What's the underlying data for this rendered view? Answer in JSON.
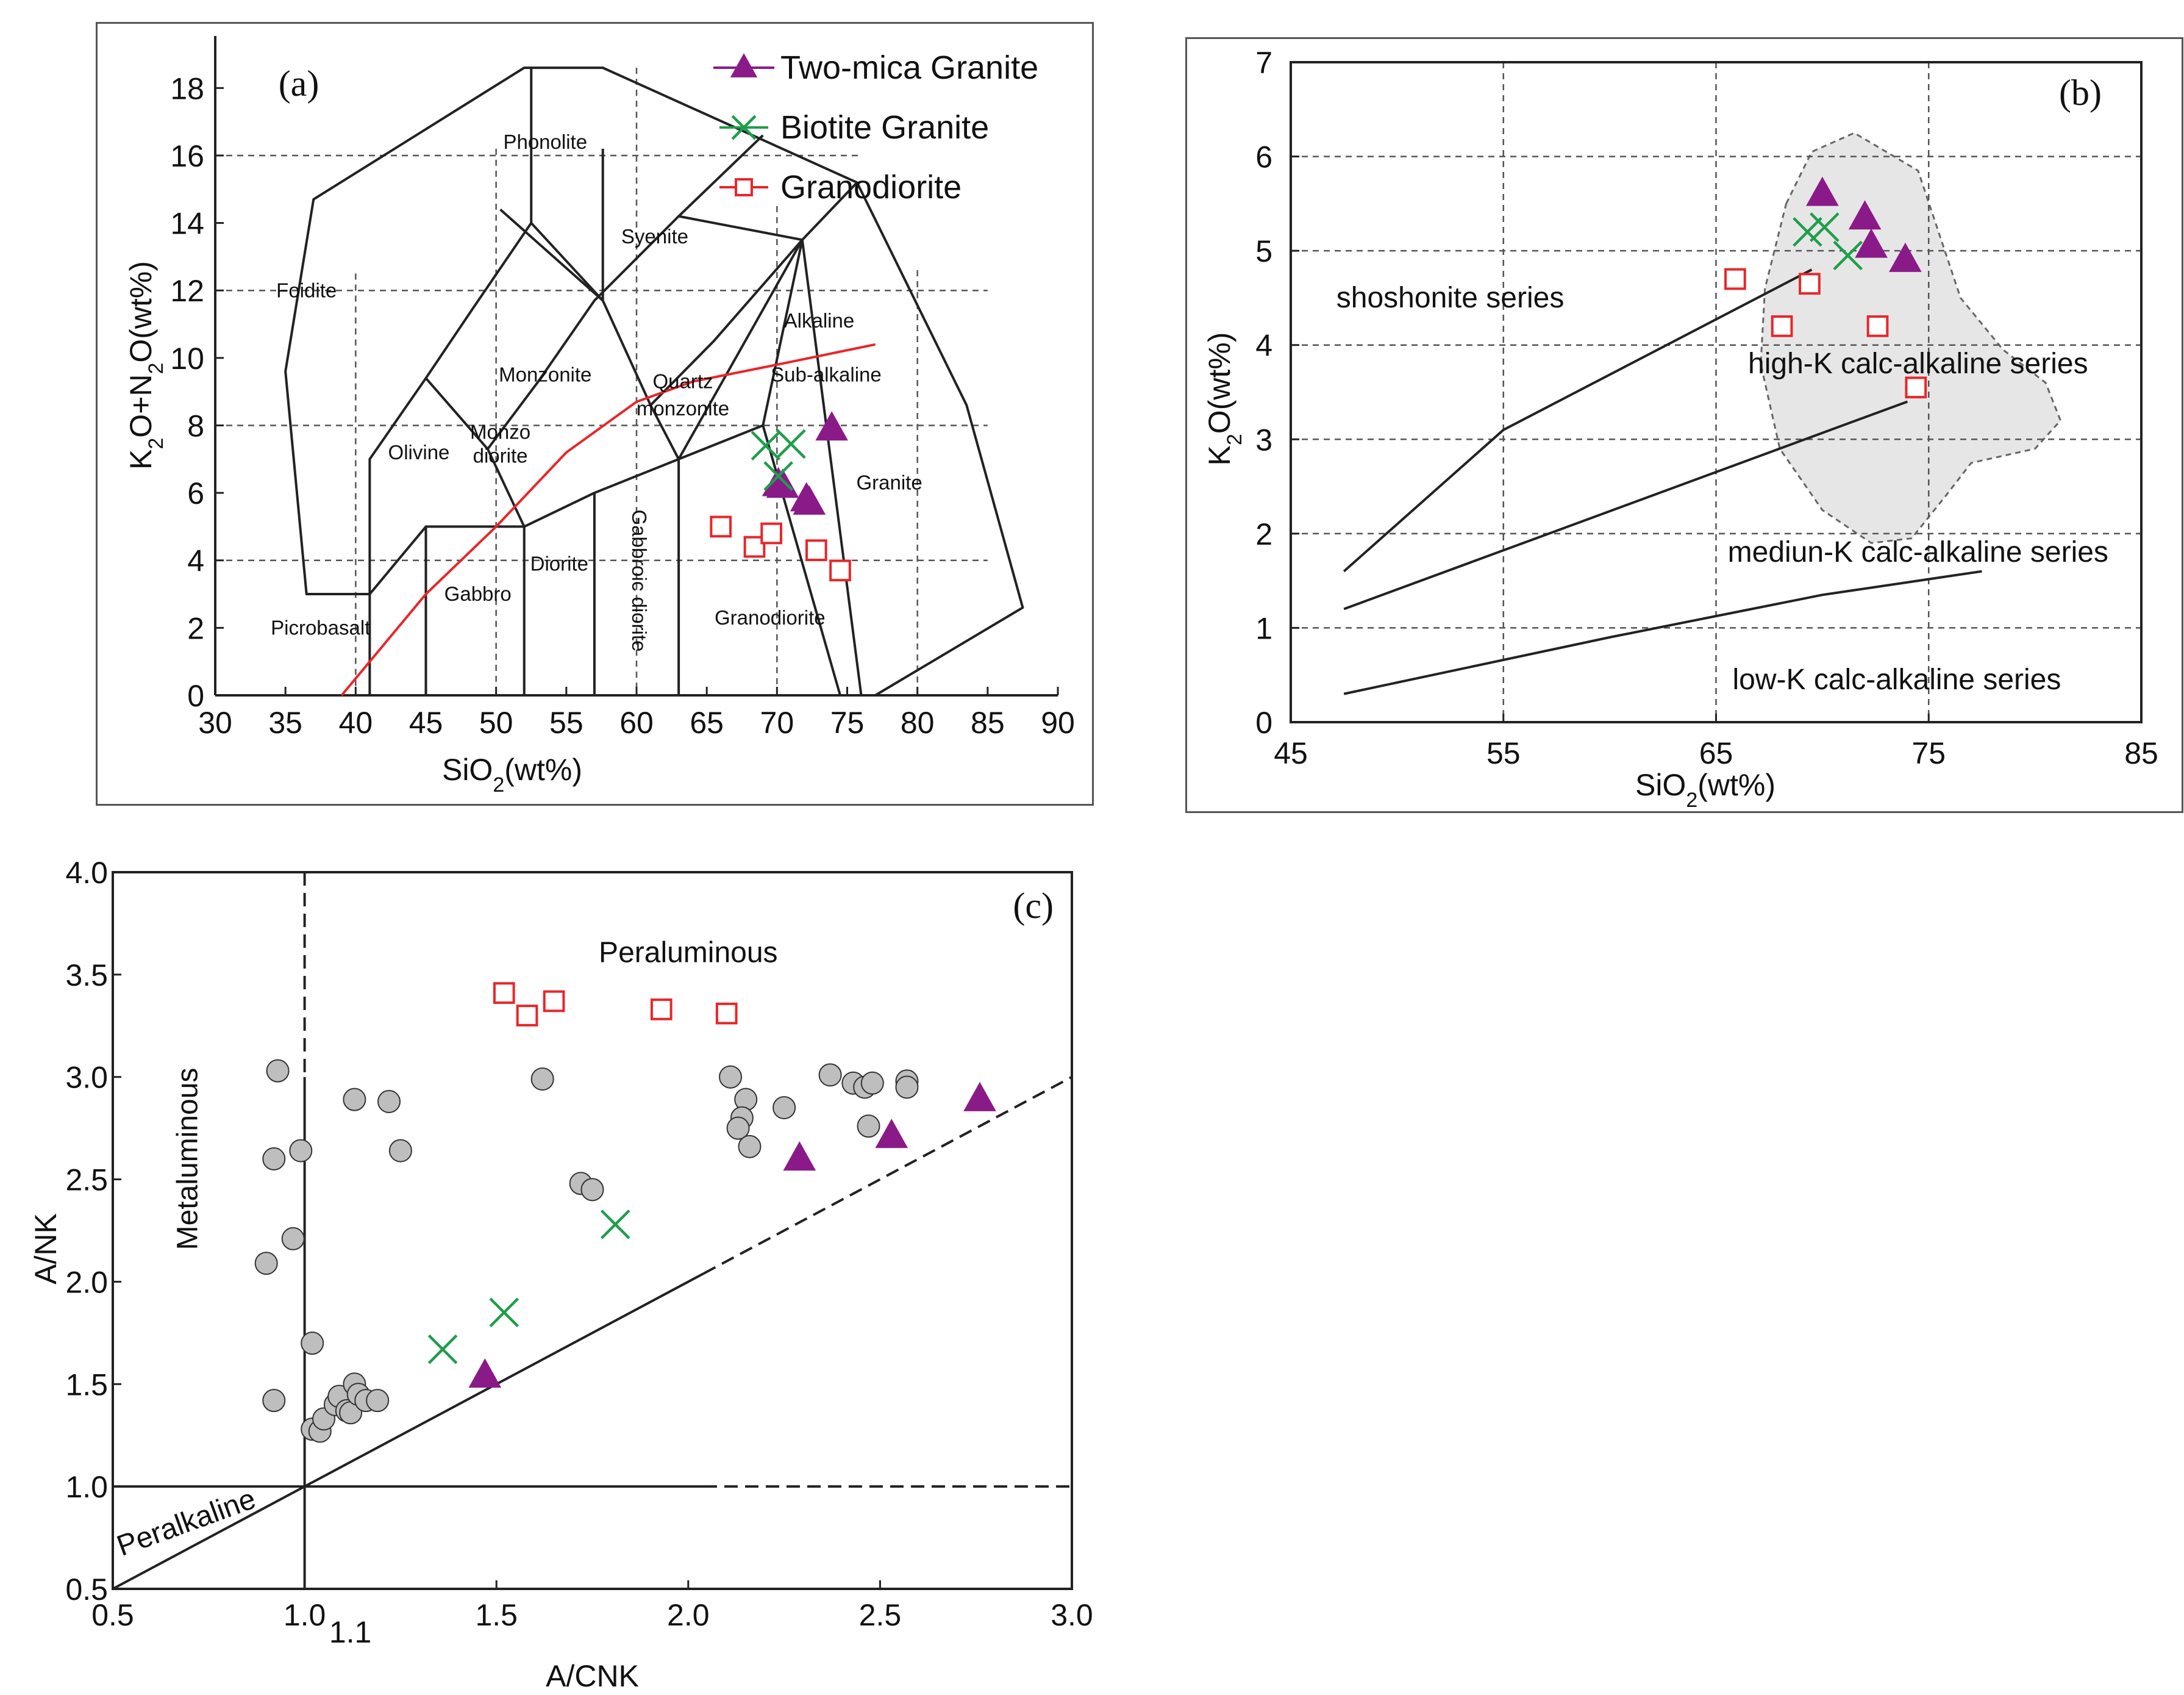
{
  "chart_data": [
    {
      "id": "a",
      "type": "scatter",
      "panel_label": "(a)",
      "xlabel": "SiO2(wt%)",
      "ylabel": "K2O+N2O(wt%)",
      "xlim": [
        30,
        90
      ],
      "ylim": [
        0,
        19
      ],
      "xticks": [
        30,
        35,
        40,
        45,
        50,
        55,
        60,
        65,
        70,
        75,
        80,
        85,
        90
      ],
      "yticks": [
        0,
        2,
        4,
        6,
        8,
        10,
        12,
        14,
        16,
        18
      ],
      "fields": [
        {
          "name": "Foidite",
          "x": 36.5,
          "y": 11.8
        },
        {
          "name": "Phonolite",
          "x": 53.5,
          "y": 16.2
        },
        {
          "name": "Syenite",
          "x": 61.3,
          "y": 13.4
        },
        {
          "name": "Alkaline",
          "x": 73,
          "y": 10.9
        },
        {
          "name": "Monzonite",
          "x": 53.5,
          "y": 9.3
        },
        {
          "name": "Quartz",
          "x": 63.3,
          "y": 9.1
        },
        {
          "name": "monzonite",
          "x": 63.3,
          "y": 8.3
        },
        {
          "name": "Sub-alkaline",
          "x": 73.5,
          "y": 9.3
        },
        {
          "name": "Olivine",
          "x": 44.5,
          "y": 7.0
        },
        {
          "name": "Monzo",
          "x": 50.3,
          "y": 7.6
        },
        {
          "name": "diorite",
          "x": 50.3,
          "y": 6.9
        },
        {
          "name": "Granite",
          "x": 78,
          "y": 6.1
        },
        {
          "name": "Diorite",
          "x": 54.5,
          "y": 3.7
        },
        {
          "name": "Gabbro",
          "x": 48.7,
          "y": 2.8
        },
        {
          "name": "Picrobasalt",
          "x": 37.5,
          "y": 1.8
        },
        {
          "name": "Granodiorite",
          "x": 69.5,
          "y": 2.1
        },
        {
          "name": "Gabbroic diorite",
          "x": 59.7,
          "y": 3.4,
          "rotate": 90
        }
      ],
      "legend": [
        {
          "name": "Two-mica Granite",
          "marker": "triangle",
          "color": "#8B1A89"
        },
        {
          "name": "Biotite  Granite",
          "marker": "x",
          "color": "#1E9E4A"
        },
        {
          "name": "Granodiorite",
          "marker": "square",
          "color": "#E8262A"
        }
      ],
      "boundary_lines": [
        [
          [
            41,
            0
          ],
          [
            41,
            7
          ],
          [
            45,
            9.4
          ],
          [
            48.4,
            11.5
          ],
          [
            52.5,
            14
          ],
          [
            57.6,
            11.7
          ],
          [
            61,
            8.6
          ],
          [
            63,
            7
          ],
          [
            69,
            8
          ],
          [
            71.8,
            13.5
          ],
          [
            76,
            0
          ]
        ],
        [
          [
            45,
            0
          ],
          [
            45,
            5
          ],
          [
            52,
            5
          ],
          [
            57,
            6
          ],
          [
            63,
            7
          ]
        ],
        [
          [
            52,
            0
          ],
          [
            52,
            5
          ],
          [
            49.4,
            7.3
          ],
          [
            53,
            9.3
          ],
          [
            57,
            11.7
          ],
          [
            63,
            14.2
          ],
          [
            71.8,
            13.5
          ]
        ],
        [
          [
            57,
            0
          ],
          [
            57,
            6
          ]
        ],
        [
          [
            63,
            0
          ],
          [
            63,
            7
          ]
        ],
        [
          [
            77,
            0
          ],
          [
            87.5,
            2.6
          ],
          [
            83.5,
            8.6
          ],
          [
            75.7,
            15.2
          ],
          [
            57.6,
            18.6
          ],
          [
            52,
            18.6
          ],
          [
            37,
            14.7
          ],
          [
            35,
            9.6
          ],
          [
            36.5,
            3
          ],
          [
            41,
            3
          ]
        ],
        [
          [
            52.5,
            14
          ],
          [
            52.5,
            18.6
          ]
        ],
        [
          [
            57.6,
            11.7
          ],
          [
            50.3,
            14.4
          ]
        ],
        [
          [
            63,
            14.2
          ],
          [
            69,
            16.6
          ]
        ],
        [
          [
            71.8,
            13.5
          ],
          [
            75.7,
            15.2
          ]
        ],
        [
          [
            57.6,
            11.7
          ],
          [
            57.6,
            16.2
          ]
        ],
        [
          [
            45,
            9.4
          ],
          [
            49.4,
            7.3
          ]
        ],
        [
          [
            45,
            5
          ],
          [
            41,
            3
          ]
        ],
        [
          [
            61,
            8.6
          ],
          [
            65.5,
            10.5
          ],
          [
            71.8,
            13.5
          ]
        ],
        [
          [
            63,
            7
          ],
          [
            71.8,
            13.5
          ]
        ],
        [
          [
            69,
            8
          ],
          [
            74.5,
            0
          ]
        ]
      ],
      "alkaline_divide": [
        [
          39,
          0
        ],
        [
          45,
          3
        ],
        [
          50,
          5
        ],
        [
          55,
          7.2
        ],
        [
          60,
          8.7
        ],
        [
          64,
          9.3
        ],
        [
          70,
          9.8
        ],
        [
          77,
          10.4
        ]
      ],
      "series": [
        {
          "name": "Two-mica Granite",
          "marker": "triangle",
          "color": "#8B1A89",
          "points": [
            [
              73.9,
              7.9
            ],
            [
              70.1,
              6.25
            ],
            [
              70.4,
              6.2
            ],
            [
              72.1,
              5.8
            ],
            [
              72.3,
              5.7
            ]
          ]
        },
        {
          "name": "Biotite Granite",
          "marker": "x",
          "color": "#1E9E4A",
          "points": [
            [
              69.2,
              7.4
            ],
            [
              71,
              7.45
            ],
            [
              70.1,
              6.5
            ]
          ]
        },
        {
          "name": "Granodiorite",
          "marker": "square",
          "color": "#E8262A",
          "points": [
            [
              66,
              5
            ],
            [
              68.4,
              4.4
            ],
            [
              69.6,
              4.8
            ],
            [
              72.8,
              4.3
            ],
            [
              74.5,
              3.7
            ]
          ]
        }
      ]
    },
    {
      "id": "b",
      "type": "scatter",
      "panel_label": "(b)",
      "xlabel": "SiO2(wt%)",
      "ylabel": "K2O(wt%)",
      "xlim": [
        45,
        85
      ],
      "ylim": [
        0,
        7
      ],
      "xticks": [
        45,
        55,
        65,
        75,
        85
      ],
      "yticks": [
        0,
        1,
        2,
        3,
        4,
        5,
        6,
        7
      ],
      "series_labels": [
        {
          "name": "shoshonite series",
          "x": 52.5,
          "y": 4.4
        },
        {
          "name": "high-K calc-alkaline series",
          "x": 74.5,
          "y": 3.7
        },
        {
          "name": "mediun-K calc-alkaline series",
          "x": 74.5,
          "y": 1.7
        },
        {
          "name": "low-K calc-alkaline series",
          "x": 73.5,
          "y": 0.35
        }
      ],
      "divider_lines": [
        [
          [
            47.5,
            1.6
          ],
          [
            55,
            3.1
          ],
          [
            69.5,
            4.8
          ]
        ],
        [
          [
            47.5,
            1.2
          ],
          [
            74,
            3.4
          ]
        ],
        [
          [
            47.5,
            0.3
          ],
          [
            60,
            0.9
          ],
          [
            70,
            1.35
          ],
          [
            77.5,
            1.6
          ]
        ]
      ],
      "reference_field": [
        [
          68.3,
          5.5
        ],
        [
          69.5,
          6.05
        ],
        [
          71.5,
          6.25
        ],
        [
          74.5,
          5.85
        ],
        [
          76.5,
          4.5
        ],
        [
          78.5,
          3.95
        ],
        [
          80.5,
          3.6
        ],
        [
          81.2,
          3.2
        ],
        [
          80,
          2.9
        ],
        [
          77,
          2.75
        ],
        [
          75.8,
          2.4
        ],
        [
          74.2,
          1.95
        ],
        [
          72.3,
          1.9
        ],
        [
          70,
          2.25
        ],
        [
          68,
          2.9
        ],
        [
          67.1,
          3.8
        ],
        [
          67.3,
          4.6
        ]
      ],
      "series": [
        {
          "name": "Two-mica Granite",
          "marker": "triangle",
          "color": "#8B1A89",
          "points": [
            [
              70,
              5.6
            ],
            [
              72,
              5.35
            ],
            [
              72.3,
              5.05
            ],
            [
              73.9,
              4.9
            ]
          ]
        },
        {
          "name": "Biotite Granite",
          "marker": "x",
          "color": "#1E9E4A",
          "points": [
            [
              69.3,
              5.2
            ],
            [
              70.1,
              5.25
            ],
            [
              71.2,
              4.95
            ]
          ]
        },
        {
          "name": "Granodiorite",
          "marker": "square",
          "color": "#E8262A",
          "points": [
            [
              65.9,
              4.7
            ],
            [
              68.1,
              4.2
            ],
            [
              69.4,
              4.65
            ],
            [
              72.6,
              4.2
            ],
            [
              74.4,
              3.55
            ]
          ]
        }
      ]
    },
    {
      "id": "c",
      "type": "scatter",
      "panel_label": "(c)",
      "xlabel": "A/CNK",
      "ylabel": "A/NK",
      "xlim": [
        0.5,
        3.0
      ],
      "ylim": [
        0.5,
        4.0
      ],
      "xticks": [
        "0.5",
        "1.0",
        "1.5",
        "2.0",
        "2.5",
        "3.0"
      ],
      "yticks": [
        "0.5",
        "1.0",
        "1.5",
        "2.0",
        "2.5",
        "3.0",
        "3.5",
        "4.0"
      ],
      "extra_tick": "1.1",
      "region_labels": [
        {
          "name": "Peraluminous",
          "x": 2.0,
          "y": 3.56
        },
        {
          "name": "Metaluminous",
          "x": 0.72,
          "y": 2.6,
          "rotate": -90
        },
        {
          "name": "Peralkaline",
          "x": 0.7,
          "y": 0.78,
          "rotate": -20
        }
      ],
      "reference_samples": [
        [
          0.93,
          3.03
        ],
        [
          0.92,
          2.6
        ],
        [
          0.99,
          2.64
        ],
        [
          0.97,
          2.21
        ],
        [
          0.9,
          2.09
        ],
        [
          1.02,
          1.7
        ],
        [
          0.92,
          1.42
        ],
        [
          1.13,
          2.89
        ],
        [
          1.22,
          2.88
        ],
        [
          1.25,
          2.64
        ],
        [
          1.62,
          2.99
        ],
        [
          1.72,
          2.48
        ],
        [
          1.75,
          2.45
        ],
        [
          2.11,
          3.0
        ],
        [
          2.15,
          2.89
        ],
        [
          2.14,
          2.8
        ],
        [
          2.13,
          2.75
        ],
        [
          2.16,
          2.66
        ],
        [
          2.25,
          2.85
        ],
        [
          2.37,
          3.01
        ],
        [
          2.43,
          2.97
        ],
        [
          2.46,
          2.95
        ],
        [
          2.48,
          2.97
        ],
        [
          2.57,
          2.98
        ],
        [
          2.57,
          2.95
        ],
        [
          2.47,
          2.76
        ],
        [
          1.02,
          1.28
        ],
        [
          1.04,
          1.27
        ],
        [
          1.05,
          1.33
        ],
        [
          1.08,
          1.4
        ],
        [
          1.09,
          1.44
        ],
        [
          1.11,
          1.37
        ],
        [
          1.12,
          1.36
        ],
        [
          1.13,
          1.5
        ],
        [
          1.14,
          1.45
        ],
        [
          1.16,
          1.42
        ],
        [
          1.19,
          1.42
        ]
      ],
      "series": [
        {
          "name": "Two-mica Granite",
          "marker": "triangle",
          "color": "#8B1A89",
          "points": [
            [
              1.47,
              1.54
            ],
            [
              2.29,
              2.6
            ],
            [
              2.53,
              2.71
            ],
            [
              2.76,
              2.89
            ]
          ]
        },
        {
          "name": "Biotite Granite",
          "marker": "x",
          "color": "#1E9E4A",
          "points": [
            [
              1.36,
              1.67
            ],
            [
              1.52,
              1.85
            ],
            [
              1.81,
              2.28
            ]
          ]
        },
        {
          "name": "Granodiorite",
          "marker": "square",
          "color": "#E8262A",
          "points": [
            [
              1.52,
              3.41
            ],
            [
              1.58,
              3.3
            ],
            [
              1.65,
              3.37
            ],
            [
              1.93,
              3.33
            ],
            [
              2.1,
              3.31
            ]
          ]
        }
      ]
    }
  ]
}
